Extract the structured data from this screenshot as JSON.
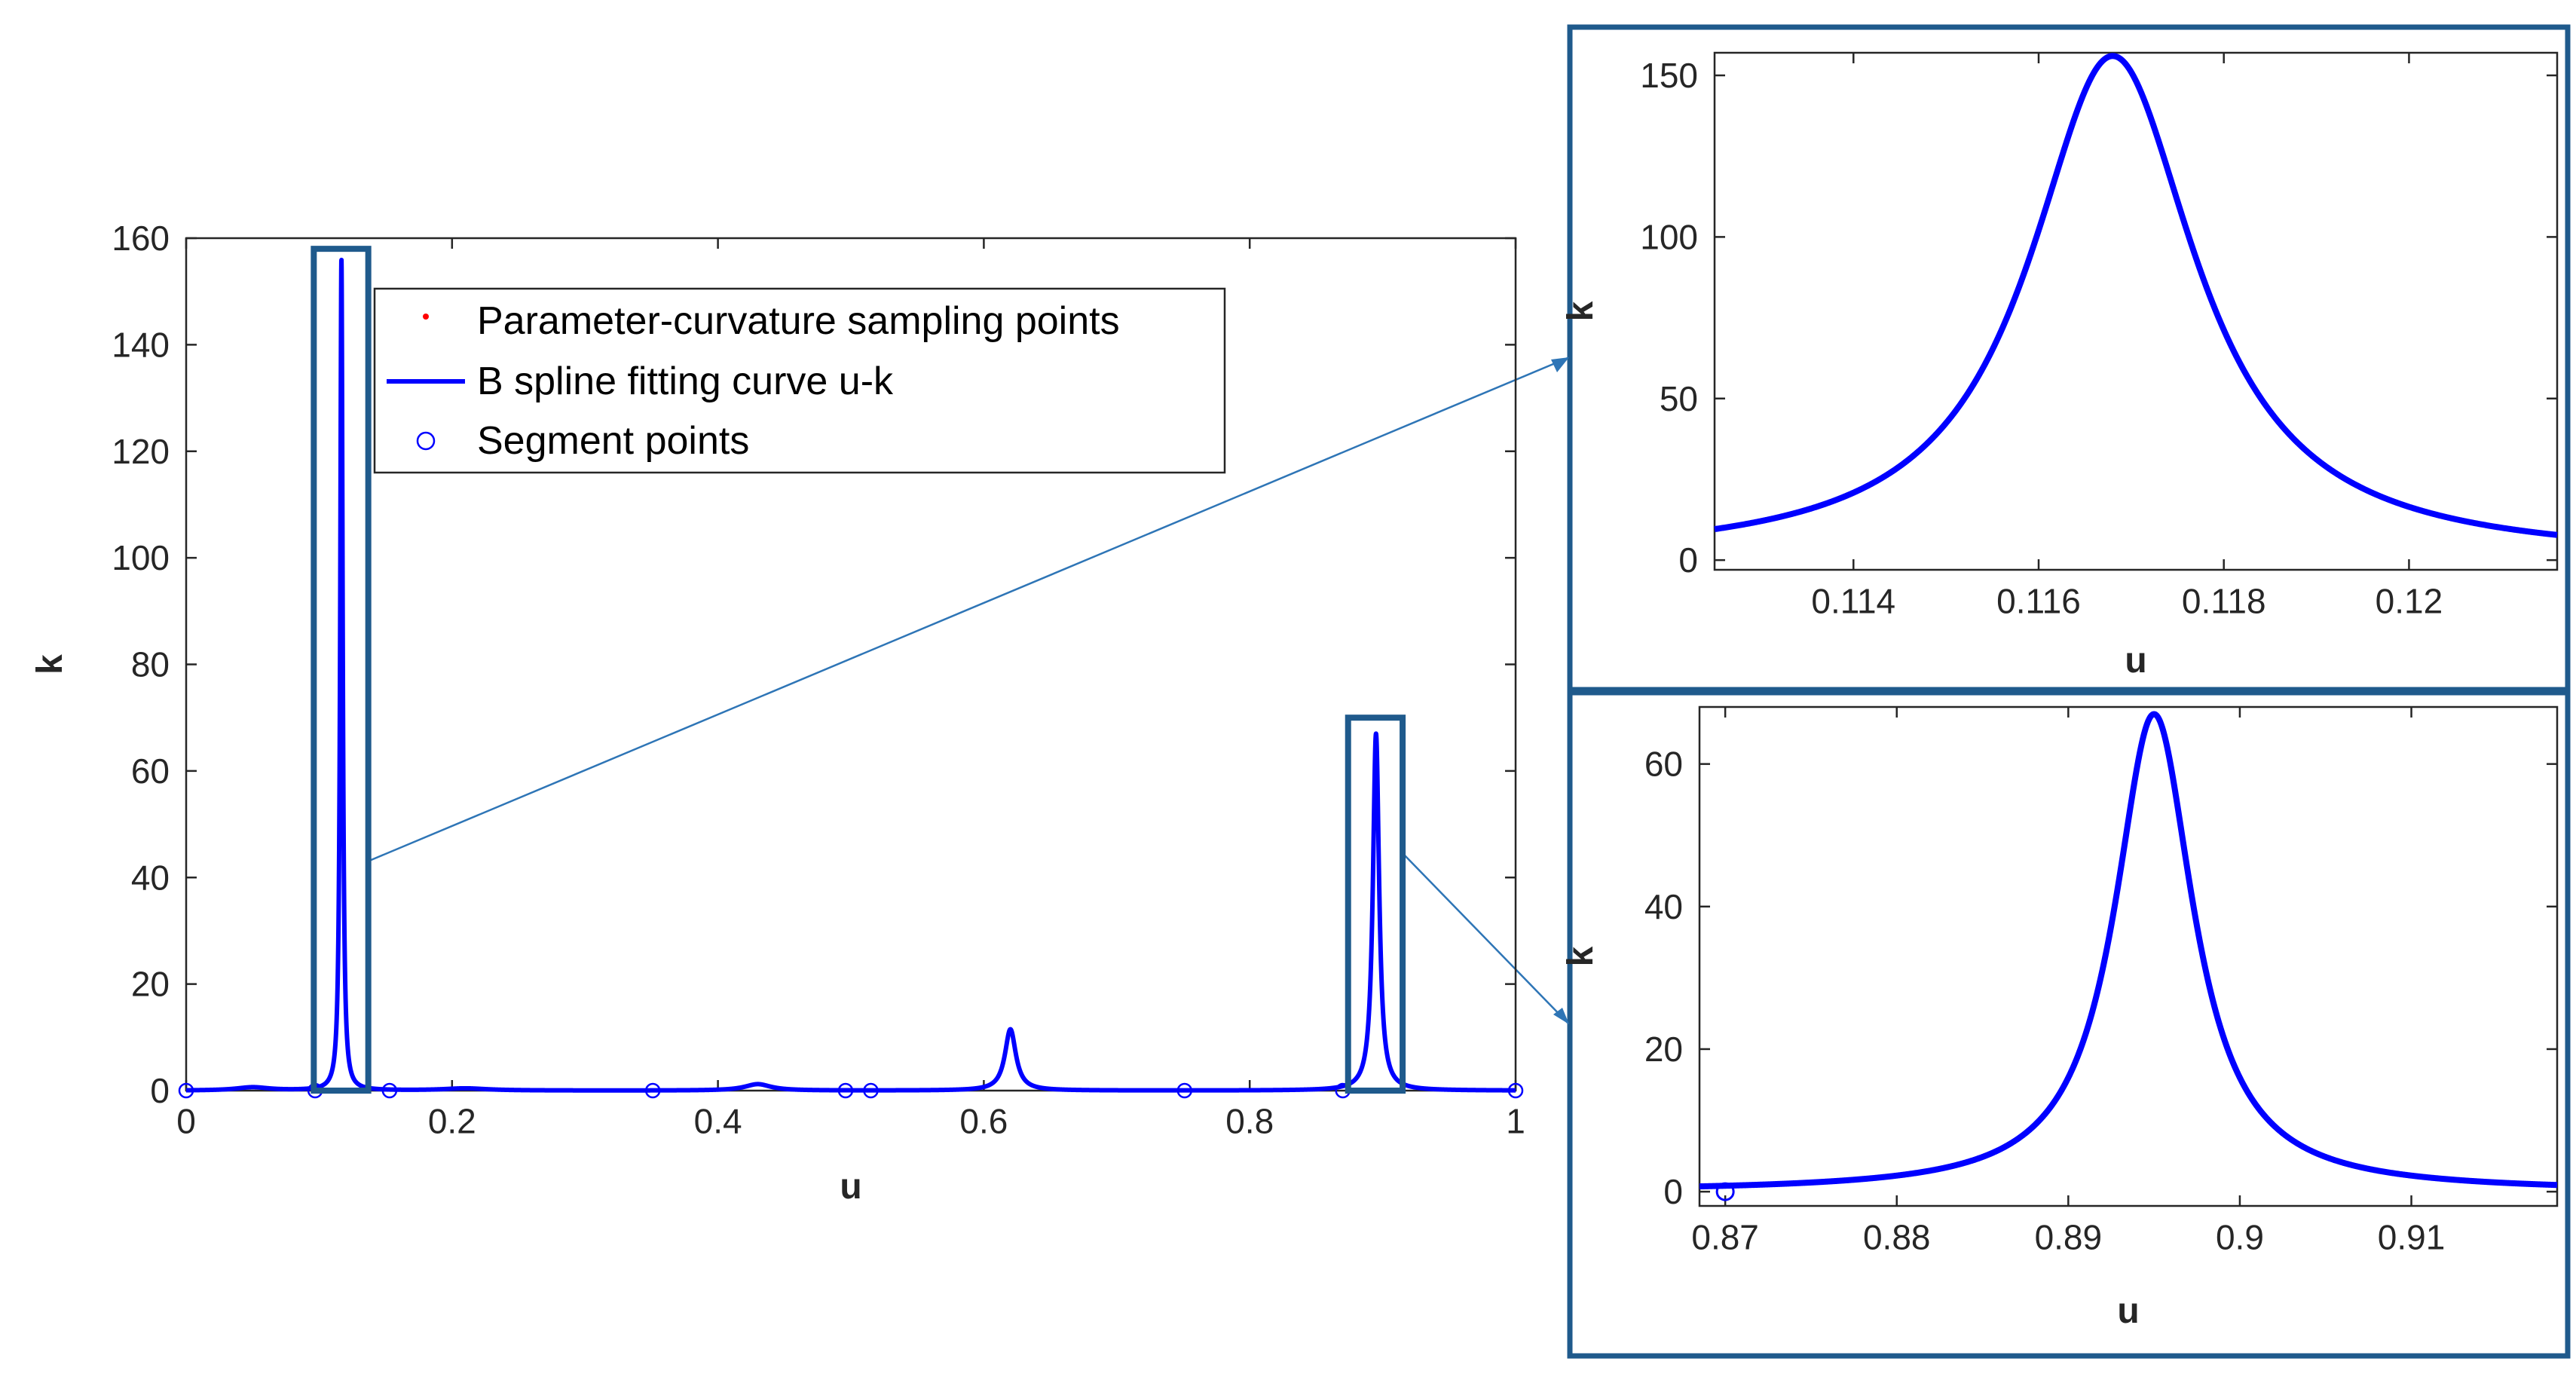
{
  "colors": {
    "curve": "#0000FF",
    "sampling_points": "#FF0000",
    "segment_points": "#0000FF",
    "highlight_box": "#1F5A8C",
    "arrow": "#2E75B6",
    "axes": "#262626"
  },
  "chart_data": [
    {
      "id": "main",
      "type": "line",
      "title": "",
      "xlabel": "u",
      "ylabel": "k",
      "xlim": [
        0,
        1
      ],
      "ylim": [
        0,
        160
      ],
      "xticks": [
        0,
        0.2,
        0.4,
        0.6,
        0.8,
        1
      ],
      "xtick_labels": [
        "0",
        "0.2",
        "0.4",
        "0.6",
        "0.8",
        "1"
      ],
      "yticks": [
        0,
        20,
        40,
        60,
        80,
        100,
        120,
        140,
        160
      ],
      "ytick_labels": [
        "0",
        "20",
        "40",
        "60",
        "80",
        "100",
        "120",
        "140",
        "160"
      ],
      "grid": false,
      "legend_position": "top",
      "legend": [
        {
          "label": "Parameter-curvature sampling points",
          "marker": "dot",
          "color": "#FF0000"
        },
        {
          "label": "B spline fitting curve u-k",
          "marker": "line",
          "color": "#0000FF"
        },
        {
          "label": "Segment points",
          "marker": "circle",
          "color": "#0000FF"
        }
      ],
      "series": [
        {
          "name": "B spline fitting curve u-k",
          "peaks": [
            {
              "u": 0.05,
              "k": 0.6,
              "width": 0.015
            },
            {
              "u": 0.1168,
              "k": 156,
              "width": 0.0011
            },
            {
              "u": 0.21,
              "k": 0.4,
              "width": 0.02
            },
            {
              "u": 0.43,
              "k": 1.2,
              "width": 0.012
            },
            {
              "u": 0.62,
              "k": 11.5,
              "width": 0.005
            },
            {
              "u": 0.895,
              "k": 67,
              "width": 0.0028
            }
          ]
        },
        {
          "name": "Segment points",
          "u": [
            0,
            0.097,
            0.153,
            0.351,
            0.496,
            0.515,
            0.751,
            0.87,
            1.0
          ],
          "k": [
            0,
            0,
            0,
            0,
            0,
            0,
            0,
            0,
            0
          ]
        }
      ],
      "highlight_regions": [
        {
          "u": [
            0.096,
            0.137
          ],
          "k": [
            0,
            158
          ]
        },
        {
          "u": [
            0.874,
            0.915
          ],
          "k": [
            0,
            70
          ]
        }
      ]
    },
    {
      "id": "zoom1",
      "type": "line",
      "title": "",
      "xlabel": "u",
      "ylabel": "k",
      "xlim": [
        0.1125,
        0.1216
      ],
      "ylim": [
        -3,
        157
      ],
      "xticks": [
        0.114,
        0.116,
        0.118,
        0.12
      ],
      "xtick_labels": [
        "0.114",
        "0.116",
        "0.118",
        "0.12"
      ],
      "yticks": [
        0,
        50,
        100,
        150
      ],
      "ytick_labels": [
        "0",
        "50",
        "100",
        "150"
      ],
      "grid": false,
      "series": [
        {
          "name": "B spline fitting curve u-k",
          "peak_u": 0.1168,
          "peak_k": 156,
          "width": 0.0011
        }
      ]
    },
    {
      "id": "zoom2",
      "type": "line",
      "title": "",
      "xlabel": "u",
      "ylabel": "k",
      "xlim": [
        0.8685,
        0.9185
      ],
      "ylim": [
        -2,
        68
      ],
      "xticks": [
        0.87,
        0.88,
        0.89,
        0.9,
        0.91
      ],
      "xtick_labels": [
        "0.87",
        "0.88",
        "0.89",
        "0.9",
        "0.91"
      ],
      "yticks": [
        0,
        20,
        40,
        60
      ],
      "ytick_labels": [
        "0",
        "20",
        "40",
        "60"
      ],
      "grid": false,
      "series": [
        {
          "name": "B spline fitting curve u-k",
          "peak_u": 0.895,
          "peak_k": 67,
          "width": 0.0028
        },
        {
          "name": "Segment points",
          "u": [
            0.87
          ],
          "k": [
            0
          ]
        }
      ]
    }
  ]
}
